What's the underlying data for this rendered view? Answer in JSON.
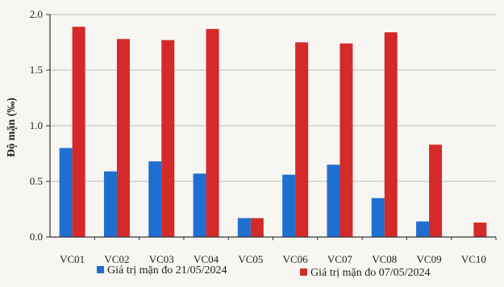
{
  "chart_data": {
    "type": "bar",
    "categories": [
      "VC01",
      "VC02",
      "VC03",
      "VC04",
      "VC05",
      "VC06",
      "VC07",
      "VC08",
      "VC09",
      "VC10"
    ],
    "series": [
      {
        "name": "Giá trị mặn đo 21/05/2024",
        "color": "#1f6fd1",
        "values": [
          0.8,
          0.59,
          0.68,
          0.57,
          0.17,
          0.56,
          0.65,
          0.35,
          0.14,
          null
        ]
      },
      {
        "name": "Giá trị mặn đo 07/05/2024",
        "color": "#d42a2a",
        "values": [
          1.89,
          1.78,
          1.77,
          1.87,
          0.17,
          1.75,
          1.74,
          1.84,
          0.83,
          0.13
        ]
      }
    ],
    "ylabel": "Độ mặn (‰)",
    "xlabel": "",
    "ylim": [
      0,
      2.0
    ],
    "yticks": [
      "0.0",
      "0.5",
      "1.0",
      "1.5",
      "2.0"
    ],
    "grid": "horizontal",
    "legend": "bottom"
  }
}
